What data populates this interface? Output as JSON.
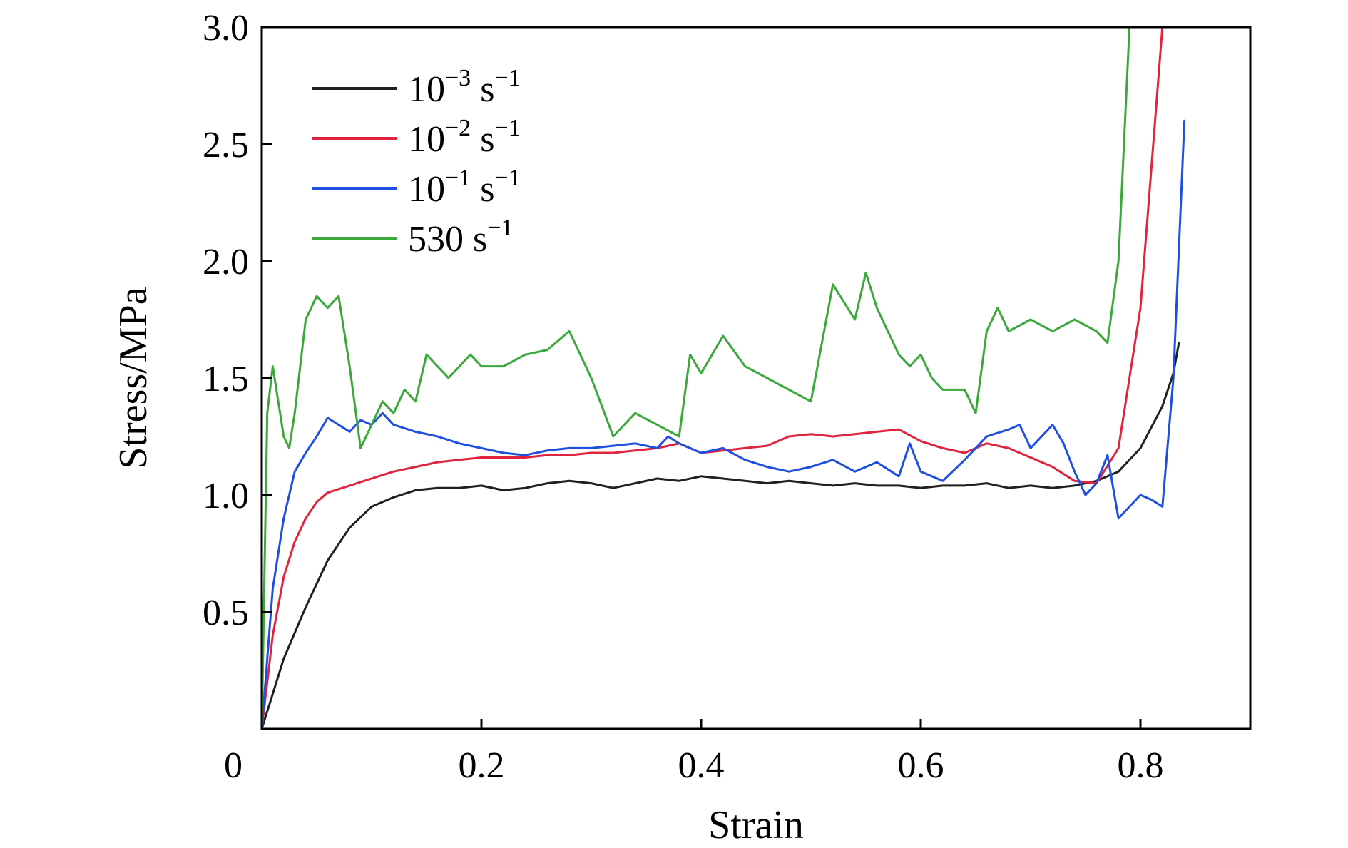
{
  "chart_data": {
    "type": "line",
    "title": "",
    "xlabel": "Strain",
    "ylabel": "Stress/MPa",
    "xlim": [
      0,
      0.9
    ],
    "ylim": [
      0,
      3.0
    ],
    "xticks": [
      0,
      0.2,
      0.4,
      0.6,
      0.8
    ],
    "xtick_labels": [
      "0",
      "0.2",
      "0.4",
      "0.6",
      "0.8"
    ],
    "yticks": [
      0.5,
      1.0,
      1.5,
      2.0,
      2.5,
      3.0
    ],
    "ytick_labels": [
      "0.5",
      "1.0",
      "1.5",
      "2.0",
      "2.5",
      "3.0"
    ],
    "grid": false,
    "legend_position": "top-left",
    "series": [
      {
        "name": "10⁻³ s⁻¹",
        "legend": {
          "base": "10",
          "exp": "−3",
          "unit": "s",
          "unit_exp": "−1"
        },
        "color": "#231f20",
        "x": [
          0,
          0.01,
          0.02,
          0.04,
          0.06,
          0.08,
          0.1,
          0.12,
          0.14,
          0.16,
          0.18,
          0.2,
          0.22,
          0.24,
          0.26,
          0.28,
          0.3,
          0.32,
          0.34,
          0.36,
          0.38,
          0.4,
          0.42,
          0.44,
          0.46,
          0.48,
          0.5,
          0.52,
          0.54,
          0.56,
          0.58,
          0.6,
          0.62,
          0.64,
          0.66,
          0.68,
          0.7,
          0.72,
          0.74,
          0.76,
          0.78,
          0.8,
          0.82,
          0.83,
          0.835
        ],
        "y": [
          0.0,
          0.15,
          0.3,
          0.52,
          0.72,
          0.86,
          0.95,
          0.99,
          1.02,
          1.03,
          1.03,
          1.04,
          1.02,
          1.03,
          1.05,
          1.06,
          1.05,
          1.03,
          1.05,
          1.07,
          1.06,
          1.08,
          1.07,
          1.06,
          1.05,
          1.06,
          1.05,
          1.04,
          1.05,
          1.04,
          1.04,
          1.03,
          1.04,
          1.04,
          1.05,
          1.03,
          1.04,
          1.03,
          1.04,
          1.06,
          1.1,
          1.2,
          1.38,
          1.52,
          1.65
        ]
      },
      {
        "name": "10⁻² s⁻¹",
        "legend": {
          "base": "10",
          "exp": "−2",
          "unit": "s",
          "unit_exp": "−1"
        },
        "color": "#e0233f",
        "x": [
          0,
          0.01,
          0.02,
          0.03,
          0.04,
          0.05,
          0.06,
          0.08,
          0.1,
          0.12,
          0.14,
          0.16,
          0.18,
          0.2,
          0.22,
          0.24,
          0.26,
          0.28,
          0.3,
          0.32,
          0.34,
          0.36,
          0.38,
          0.4,
          0.42,
          0.44,
          0.46,
          0.48,
          0.5,
          0.52,
          0.54,
          0.56,
          0.58,
          0.6,
          0.62,
          0.64,
          0.66,
          0.68,
          0.7,
          0.72,
          0.74,
          0.76,
          0.78,
          0.79,
          0.8,
          0.81,
          0.82
        ],
        "y": [
          0.0,
          0.4,
          0.65,
          0.8,
          0.9,
          0.97,
          1.01,
          1.04,
          1.07,
          1.1,
          1.12,
          1.14,
          1.15,
          1.16,
          1.16,
          1.16,
          1.17,
          1.17,
          1.18,
          1.18,
          1.19,
          1.2,
          1.22,
          1.18,
          1.19,
          1.2,
          1.21,
          1.25,
          1.26,
          1.25,
          1.26,
          1.27,
          1.28,
          1.23,
          1.2,
          1.18,
          1.22,
          1.2,
          1.16,
          1.12,
          1.06,
          1.05,
          1.2,
          1.5,
          1.8,
          2.4,
          3.0
        ]
      },
      {
        "name": "10⁻¹ s⁻¹",
        "legend": {
          "base": "10",
          "exp": "−1",
          "unit": "s",
          "unit_exp": "−1"
        },
        "color": "#1f4fe0",
        "x": [
          0,
          0.01,
          0.02,
          0.03,
          0.04,
          0.05,
          0.06,
          0.07,
          0.08,
          0.09,
          0.1,
          0.11,
          0.12,
          0.14,
          0.16,
          0.18,
          0.2,
          0.22,
          0.24,
          0.26,
          0.28,
          0.3,
          0.32,
          0.34,
          0.36,
          0.37,
          0.38,
          0.4,
          0.42,
          0.44,
          0.46,
          0.48,
          0.5,
          0.52,
          0.54,
          0.56,
          0.58,
          0.59,
          0.6,
          0.62,
          0.64,
          0.66,
          0.68,
          0.69,
          0.7,
          0.72,
          0.73,
          0.74,
          0.75,
          0.76,
          0.77,
          0.78,
          0.79,
          0.8,
          0.81,
          0.82,
          0.83,
          0.84
        ],
        "y": [
          0.0,
          0.6,
          0.9,
          1.1,
          1.18,
          1.25,
          1.33,
          1.3,
          1.27,
          1.32,
          1.3,
          1.35,
          1.3,
          1.27,
          1.25,
          1.22,
          1.2,
          1.18,
          1.17,
          1.19,
          1.2,
          1.2,
          1.21,
          1.22,
          1.2,
          1.25,
          1.22,
          1.18,
          1.2,
          1.15,
          1.12,
          1.1,
          1.12,
          1.15,
          1.1,
          1.14,
          1.08,
          1.22,
          1.1,
          1.06,
          1.15,
          1.25,
          1.28,
          1.3,
          1.2,
          1.3,
          1.22,
          1.1,
          1.0,
          1.05,
          1.17,
          0.9,
          0.95,
          1.0,
          0.98,
          0.95,
          1.5,
          2.6
        ]
      },
      {
        "name": "530 s⁻¹",
        "legend": {
          "base": "530",
          "exp": "",
          "unit": "s",
          "unit_exp": "−1"
        },
        "color": "#3aa83a",
        "x": [
          0,
          0.005,
          0.01,
          0.015,
          0.02,
          0.025,
          0.03,
          0.04,
          0.05,
          0.06,
          0.07,
          0.08,
          0.09,
          0.1,
          0.11,
          0.12,
          0.13,
          0.14,
          0.15,
          0.16,
          0.17,
          0.18,
          0.19,
          0.2,
          0.22,
          0.24,
          0.26,
          0.28,
          0.3,
          0.32,
          0.34,
          0.36,
          0.38,
          0.39,
          0.4,
          0.42,
          0.44,
          0.46,
          0.48,
          0.5,
          0.52,
          0.54,
          0.55,
          0.56,
          0.57,
          0.58,
          0.59,
          0.6,
          0.61,
          0.62,
          0.64,
          0.65,
          0.66,
          0.67,
          0.68,
          0.7,
          0.72,
          0.74,
          0.76,
          0.77,
          0.78,
          0.79
        ],
        "y": [
          0.0,
          1.35,
          1.55,
          1.4,
          1.25,
          1.2,
          1.35,
          1.75,
          1.85,
          1.8,
          1.85,
          1.55,
          1.2,
          1.3,
          1.4,
          1.35,
          1.45,
          1.4,
          1.6,
          1.55,
          1.5,
          1.55,
          1.6,
          1.55,
          1.55,
          1.6,
          1.62,
          1.7,
          1.5,
          1.25,
          1.35,
          1.3,
          1.25,
          1.6,
          1.52,
          1.68,
          1.55,
          1.5,
          1.45,
          1.4,
          1.9,
          1.75,
          1.95,
          1.8,
          1.7,
          1.6,
          1.55,
          1.6,
          1.5,
          1.45,
          1.45,
          1.35,
          1.7,
          1.8,
          1.7,
          1.75,
          1.7,
          1.75,
          1.7,
          1.65,
          2.0,
          3.0
        ]
      }
    ]
  }
}
